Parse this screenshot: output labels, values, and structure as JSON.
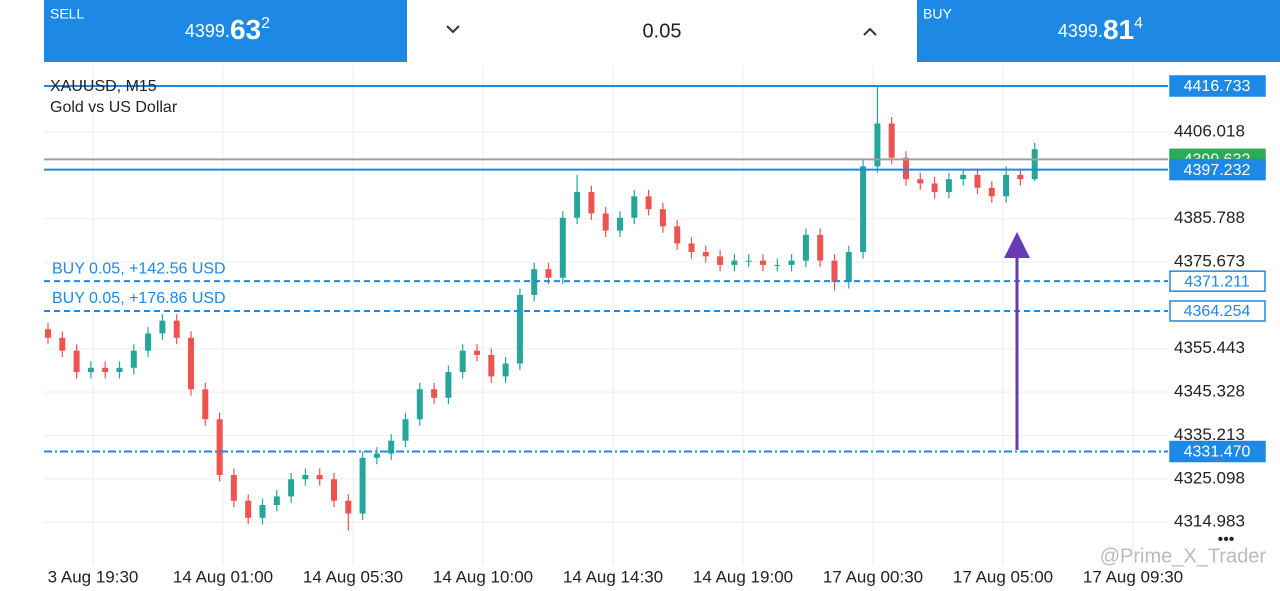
{
  "header": {
    "sell": {
      "label": "SELL",
      "price_main": "4399.",
      "price_big": "63",
      "price_sup": "2"
    },
    "volume": "0.05",
    "buy": {
      "label": "BUY",
      "price_main": "4399.",
      "price_big": "81",
      "price_sup": "4"
    }
  },
  "chart_data": {
    "type": "candlestick",
    "symbol": "XAUUSD, M15",
    "description": "Gold vs US Dollar",
    "up_color": "#26a69a",
    "down_color": "#ef5350",
    "grid": true,
    "ylim": [
      4305,
      4421.4
    ],
    "yticks": [
      4406.018,
      4385.788,
      4375.673,
      4355.443,
      4345.328,
      4335.213,
      4325.098,
      4314.983
    ],
    "xtick_labels": [
      "3 Aug 19:30",
      "14 Aug 01:00",
      "14 Aug 05:30",
      "14 Aug 10:00",
      "14 Aug 14:30",
      "14 Aug 19:00",
      "17 Aug 00:30",
      "17 Aug 05:00",
      "17 Aug 09:30"
    ],
    "open": [
      4360,
      4358,
      4355,
      4350,
      4351,
      4350,
      4351,
      4355,
      4359,
      4362,
      4358,
      4346,
      4339,
      4326,
      4320,
      4316,
      4319,
      4321,
      4325,
      4326,
      4325,
      4320,
      4317,
      4330,
      4331,
      4334,
      4339,
      4346,
      4344,
      4350,
      4355,
      4354,
      4349,
      4352,
      4368,
      4374,
      4372,
      4386,
      4392,
      4387,
      4383,
      4386,
      4391,
      4388,
      4384,
      4380,
      4378,
      4377,
      4375,
      4376,
      4376,
      4375,
      4375,
      4376,
      4382,
      4376,
      4371,
      4378,
      4398,
      4408,
      4400,
      4395,
      4394,
      4392,
      4395,
      4396,
      4393,
      4391,
      4396,
      4395
    ],
    "high": [
      4361.5,
      4359.5,
      4356.5,
      4352.5,
      4352.5,
      4352.5,
      4356.5,
      4360.5,
      4363.5,
      4363.5,
      4359.5,
      4347.5,
      4340.5,
      4327.5,
      4321.5,
      4320.5,
      4322.5,
      4326.5,
      4327.5,
      4327.5,
      4326.5,
      4321.5,
      4331.5,
      4332.5,
      4335.5,
      4340.5,
      4347.5,
      4347.5,
      4351.5,
      4356.5,
      4356.5,
      4355.5,
      4353.5,
      4369.5,
      4375.5,
      4375.5,
      4387.5,
      4396,
      4393.5,
      4388.5,
      4387.5,
      4392.5,
      4392.5,
      4389.5,
      4385.5,
      4381.5,
      4379.5,
      4378.5,
      4377.5,
      4377.5,
      4377.5,
      4376.5,
      4377.5,
      4383.5,
      4383.5,
      4377.5,
      4379.5,
      4399.5,
      4416.7,
      4409.5,
      4401.5,
      4396.5,
      4395.5,
      4396.5,
      4397.5,
      4397.5,
      4394.5,
      4398,
      4397.5,
      4403.5
    ],
    "low": [
      4356.5,
      4353.5,
      4348.5,
      4348.5,
      4348.5,
      4348.5,
      4349.5,
      4353.5,
      4357.5,
      4356.5,
      4344.5,
      4337.5,
      4324.5,
      4318.5,
      4314.5,
      4314.5,
      4317.5,
      4319.5,
      4323.5,
      4323.5,
      4318.5,
      4313,
      4315.5,
      4328.5,
      4329.5,
      4332.5,
      4337.5,
      4342.5,
      4342.5,
      4348.5,
      4352.5,
      4347.5,
      4347.5,
      4350.5,
      4366.5,
      4370.5,
      4370.5,
      4384.5,
      4385.5,
      4381.5,
      4381.5,
      4384.5,
      4386.5,
      4382.5,
      4378.5,
      4376.5,
      4375.5,
      4373.5,
      4373.5,
      4374.5,
      4373.5,
      4373.5,
      4373.5,
      4374.5,
      4374.5,
      4369,
      4369.5,
      4376.5,
      4396.5,
      4398.5,
      4393.5,
      4392.5,
      4390.5,
      4390.5,
      4393.5,
      4391.5,
      4389.5,
      4389.5,
      4393.5,
      4394.5
    ],
    "close": [
      4358,
      4355,
      4350,
      4351,
      4350,
      4351,
      4355,
      4359,
      4362,
      4358,
      4346,
      4339,
      4326,
      4320,
      4316,
      4319,
      4321,
      4325,
      4326,
      4325,
      4320,
      4317,
      4330,
      4331,
      4334,
      4339,
      4346,
      4344,
      4350,
      4355,
      4354,
      4349,
      4352,
      4368,
      4374,
      4372,
      4386,
      4392,
      4387,
      4383,
      4386,
      4391,
      4388,
      4384,
      4380,
      4378,
      4377,
      4375,
      4376,
      4376,
      4375,
      4375,
      4376,
      4382,
      4376,
      4371,
      4378,
      4398,
      4408,
      4400,
      4395,
      4394,
      4392,
      4395,
      4396,
      4393,
      4391,
      4396,
      4395,
      4402
    ],
    "levels": [
      {
        "value": 4399.632,
        "label": "4399.632",
        "style": "solid",
        "color": "#9e9e9e",
        "box": "#2eaa55"
      },
      {
        "value": 4416.733,
        "label": "4416.733",
        "style": "solid",
        "color": "#1e88e5",
        "box": "#1e88e5"
      },
      {
        "value": 4397.232,
        "label": "4397.232",
        "style": "solid",
        "color": "#1e88e5",
        "box": "#1e88e5"
      },
      {
        "value": 4371.211,
        "label": "4371.211",
        "style": "dashed",
        "color": "#1e88e5",
        "box": "outline",
        "position": "BUY 0.05,  +142.56 USD"
      },
      {
        "value": 4364.254,
        "label": "4364.254",
        "style": "dashed",
        "color": "#1e88e5",
        "box": "outline",
        "position": "BUY 0.05,  +176.86 USD"
      },
      {
        "value": 4331.47,
        "label": "4331.470",
        "style": "dashdot",
        "color": "#1e88e5",
        "box": "#1e88e5"
      }
    ]
  },
  "watermark": "@Prime_X_Trader",
  "menu": "•••"
}
